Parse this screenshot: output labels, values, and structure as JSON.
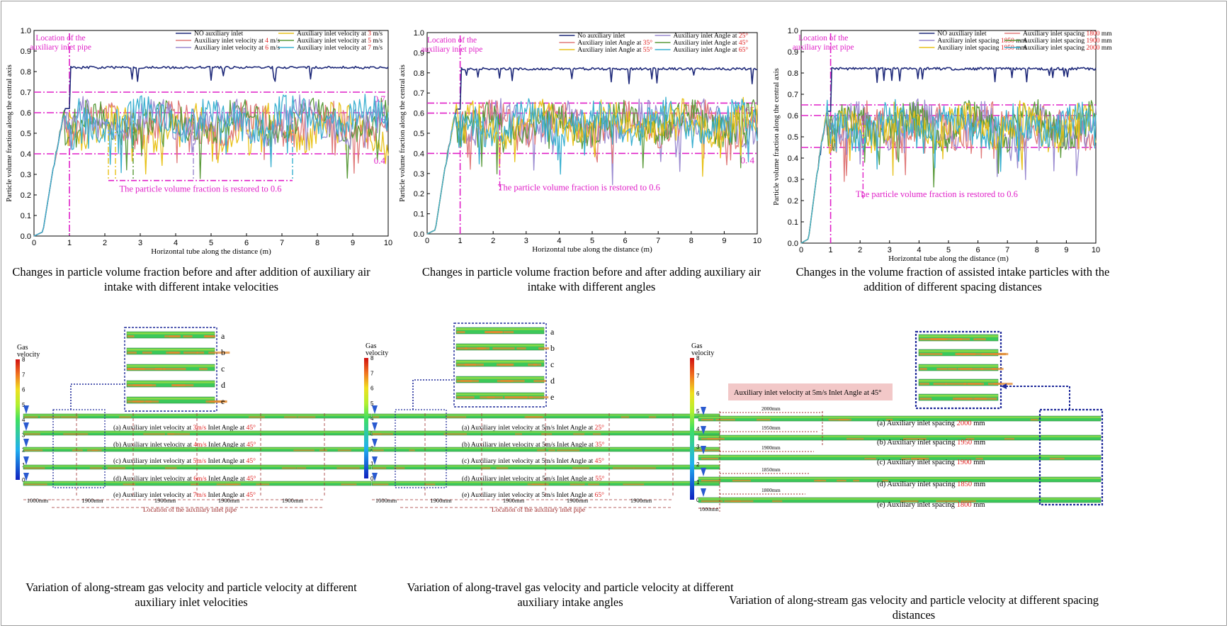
{
  "chart_data": [
    {
      "type": "line",
      "xlabel": "Horizontal tube along the distance (m)",
      "ylabel": "Particle volume fraction along the central axis",
      "xlim": [
        0,
        10
      ],
      "ylim": [
        0,
        1.0
      ],
      "xticks": [
        "0",
        "1",
        "2",
        "3",
        "4",
        "5",
        "6",
        "7",
        "8",
        "9",
        "10"
      ],
      "yticks": [
        "0.0",
        "0.1",
        "0.2",
        "0.3",
        "0.4",
        "0.5",
        "0.6",
        "0.7",
        "0.8",
        "0.9",
        "1.0"
      ],
      "legend": [
        {
          "text": "NO auxiliary inlet",
          "color": "#1f2a7a"
        },
        {
          "text": "Auxiliary inlet velocity at ",
          "hl": "3",
          "unit": " m/s",
          "color": "#e8c21a"
        },
        {
          "text": "Auxiliary inlet velocity at ",
          "hl": "4",
          "unit": " m/s",
          "color": "#e07a7a"
        },
        {
          "text": "Auxiliary inlet velocity at ",
          "hl": "5",
          "unit": " m/s",
          "color": "#5a9a3a"
        },
        {
          "text": "Auxiliary inlet velocity at ",
          "hl": "6",
          "unit": " m/s",
          "color": "#9a8ad0"
        },
        {
          "text": "Auxiliary inlet velocity at ",
          "hl": "7",
          "unit": " m/s",
          "color": "#3ab0d0"
        }
      ],
      "inlet_label": "Location of the auxiliary inlet pipe",
      "ref_lines": [
        {
          "y": 0.7,
          "label": "0.7"
        },
        {
          "y": 0.6,
          "label": "0.6"
        },
        {
          "y": 0.4,
          "label": "0.4"
        }
      ],
      "restore_label": "The particle volume fraction is restored to 0.6",
      "caption": "Changes in particle volume fraction before and after addition of auxiliary air intake with different intake velocities"
    },
    {
      "type": "line",
      "xlabel": "Horizontal tube along the distance (m)",
      "ylabel": "Particle volume fraction along the central axis",
      "xlim": [
        0,
        10
      ],
      "ylim": [
        0,
        1.0
      ],
      "xticks": [
        "0",
        "1",
        "2",
        "3",
        "4",
        "5",
        "6",
        "7",
        "8",
        "9",
        "10"
      ],
      "yticks": [
        "0.0",
        "0.1",
        "0.2",
        "0.3",
        "0.4",
        "0.5",
        "0.6",
        "0.7",
        "0.8",
        "0.9",
        "1.0"
      ],
      "legend": [
        {
          "text": "No auxiliary inlet",
          "color": "#1f2a7a"
        },
        {
          "text": "Auxiliary inlet Angle at ",
          "hl": "25°",
          "unit": "",
          "color": "#9a8ad0"
        },
        {
          "text": "Auxiliary inlet Angle at ",
          "hl": "35°",
          "unit": "",
          "color": "#e07a7a"
        },
        {
          "text": "Auxiliary inlet Angle at ",
          "hl": "45°",
          "unit": "",
          "color": "#5a9a3a"
        },
        {
          "text": "Auxiliary inlet Angle at ",
          "hl": "55°",
          "unit": "",
          "color": "#e8c21a"
        },
        {
          "text": "Auxiliary inlet Angle at ",
          "hl": "65°",
          "unit": "",
          "color": "#3ab0d0"
        }
      ],
      "inlet_label": "Location of the auxiliary inlet pipe",
      "ref_lines": [
        {
          "y": 0.65,
          "label": "0. 65"
        },
        {
          "y": 0.6,
          "label": "0.6"
        },
        {
          "y": 0.4,
          "label": "0. 4"
        }
      ],
      "restore_label": "The particle volume fraction is restored to 0.6",
      "caption": "Changes in particle volume fraction before and after adding auxiliary air intake with different angles"
    },
    {
      "type": "line",
      "xlabel": "Horizontal tube along the distance (m)",
      "ylabel": "Particle volume fraction along the central axis",
      "xlim": [
        0,
        10
      ],
      "ylim": [
        0,
        1.0
      ],
      "xticks": [
        "0",
        "1",
        "2",
        "3",
        "4",
        "5",
        "6",
        "7",
        "8",
        "9",
        "10"
      ],
      "yticks": [
        "0.0",
        "0.1",
        "0.2",
        "0.3",
        "0.4",
        "0.5",
        "0.6",
        "0.7",
        "0.8",
        "0.9",
        "1.0"
      ],
      "legend": [
        {
          "text": "NO auxiliary inlet",
          "color": "#1f2a7a"
        },
        {
          "text": "Auxiliary inlet spacing ",
          "hl": "1800",
          "unit": " mm",
          "color": "#e07a7a"
        },
        {
          "text": "Auxiliary inlet spacing ",
          "hl": "1850",
          "unit": " mm",
          "color": "#9a8ad0"
        },
        {
          "text": "Auxiliary inlet spacing ",
          "hl": "1900",
          "unit": " mm",
          "color": "#5a9a3a"
        },
        {
          "text": "Auxiliary inlet spacing ",
          "hl": "1950",
          "unit": " mm",
          "color": "#e8c21a"
        },
        {
          "text": "Auxiliary inlet spacing ",
          "hl": "2000",
          "unit": " mm",
          "color": "#3ab0d0"
        }
      ],
      "inlet_label": "Location of the auxiliary inlet pipe",
      "ref_lines": [
        {
          "y": 0.65,
          "label": ""
        },
        {
          "y": 0.6,
          "label": ""
        },
        {
          "y": 0.45,
          "label": ""
        }
      ],
      "restore_label": "The particle volume fraction is restored to 0.6",
      "caption": "Changes in the volume fraction of assisted intake particles with the addition of different spacing distances"
    }
  ],
  "contours": [
    {
      "colorbar_title": "Gas velocity",
      "colorbar_ticks": [
        "0",
        "1",
        "2",
        "3",
        "4",
        "5",
        "6",
        "7",
        "8"
      ],
      "zoom_labels": [
        "a",
        "b",
        "c",
        "d",
        "e"
      ],
      "rows": [
        {
          "pre": "(a) Auxiliary inlet velocity at ",
          "hl1": "3m/s",
          "mid": "  Inlet Angle at ",
          "hl2": "45°"
        },
        {
          "pre": "(b) Auxiliary inlet velocity at ",
          "hl1": "4m/s",
          "mid": "  Inlet Angle at ",
          "hl2": "45°"
        },
        {
          "pre": "(c) Auxiliary inlet velocity at ",
          "hl1": "5m/s",
          "mid": "  Inlet Angle at ",
          "hl2": "45°"
        },
        {
          "pre": "(d) Auxiliary inlet velocity at ",
          "hl1": "6m/s",
          "mid": "  Inlet Angle at ",
          "hl2": "45°"
        },
        {
          "pre": "(e) Auxiliary inlet velocity at ",
          "hl1": "7m/s",
          "mid": "  Inlet Angle at ",
          "hl2": "45°"
        }
      ],
      "spacings": [
        "1000mm",
        "1900mm",
        "1900mm",
        "1900mm",
        "1900mm"
      ],
      "location_label": "Location of the auxiliary inlet pipe",
      "caption": "Variation of along-stream gas velocity and particle velocity at different auxiliary inlet velocities"
    },
    {
      "colorbar_title": "Gas velocity",
      "colorbar_ticks": [
        "0",
        "1",
        "2",
        "3",
        "4",
        "5",
        "6",
        "7",
        "8"
      ],
      "zoom_labels": [
        "a",
        "b",
        "c",
        "d",
        "e"
      ],
      "rows": [
        {
          "pre": "(a) Auxiliary inlet velocity at 5m/s   Inlet Angle at ",
          "hl1": "",
          "mid": "",
          "hl2": "25°"
        },
        {
          "pre": "(b) Auxiliary inlet velocity at 5m/s   Inlet Angle at ",
          "hl1": "",
          "mid": "",
          "hl2": "35°"
        },
        {
          "pre": "(c) Auxiliary inlet velocity at 5m/s   Inlet Angle at ",
          "hl1": "",
          "mid": "",
          "hl2": "45°"
        },
        {
          "pre": "(d) Auxiliary inlet velocity at 5m/s   Inlet Angle at ",
          "hl1": "",
          "mid": "",
          "hl2": "55°"
        },
        {
          "pre": "(e) Auxiliary inlet velocity at 5m/s   Inlet Angle at ",
          "hl1": "",
          "mid": "",
          "hl2": "65°"
        }
      ],
      "spacings": [
        "1000mm",
        "1900mm",
        "1900mm",
        "1900mm",
        "1900mm"
      ],
      "location_label": "Location of the auxiliary inlet pipe",
      "caption": "Variation of along-travel gas velocity and particle velocity at different auxiliary intake angles"
    },
    {
      "colorbar_title": "Gas velocity",
      "colorbar_ticks": [
        "0",
        "1",
        "2",
        "3",
        "4",
        "5",
        "6",
        "7",
        "8"
      ],
      "banner": "Auxiliary inlet velocity at 5m/s   Inlet Angle at 45°",
      "rows": [
        {
          "pre": "(a)  Auxiliary inlet spacing ",
          "hl": "2000",
          "post": " mm",
          "dim": "2000mm"
        },
        {
          "pre": "(b)  Auxiliary inlet spacing ",
          "hl": "1950",
          "post": " mm",
          "dim": "1950mm"
        },
        {
          "pre": "(c)  Auxiliary inlet spacing ",
          "hl": "1900",
          "post": " mm",
          "dim": "1900mm"
        },
        {
          "pre": "(d)  Auxiliary inlet spacing ",
          "hl": "1850",
          "post": " mm",
          "dim": "1850mm"
        },
        {
          "pre": "(e)  Auxiliary inlet spacing ",
          "hl": "1800",
          "post": " mm",
          "dim": "1800mm"
        }
      ],
      "spacings": [
        "1000mm"
      ],
      "caption": "Variation of along-stream gas velocity and particle velocity at different spacing distances"
    }
  ],
  "colors": {
    "magenta": "#e020c8",
    "highlight": "#e02020",
    "navy": "#1f2a7a",
    "dashblue": "#2a3a9a",
    "darkred": "#a03030"
  }
}
